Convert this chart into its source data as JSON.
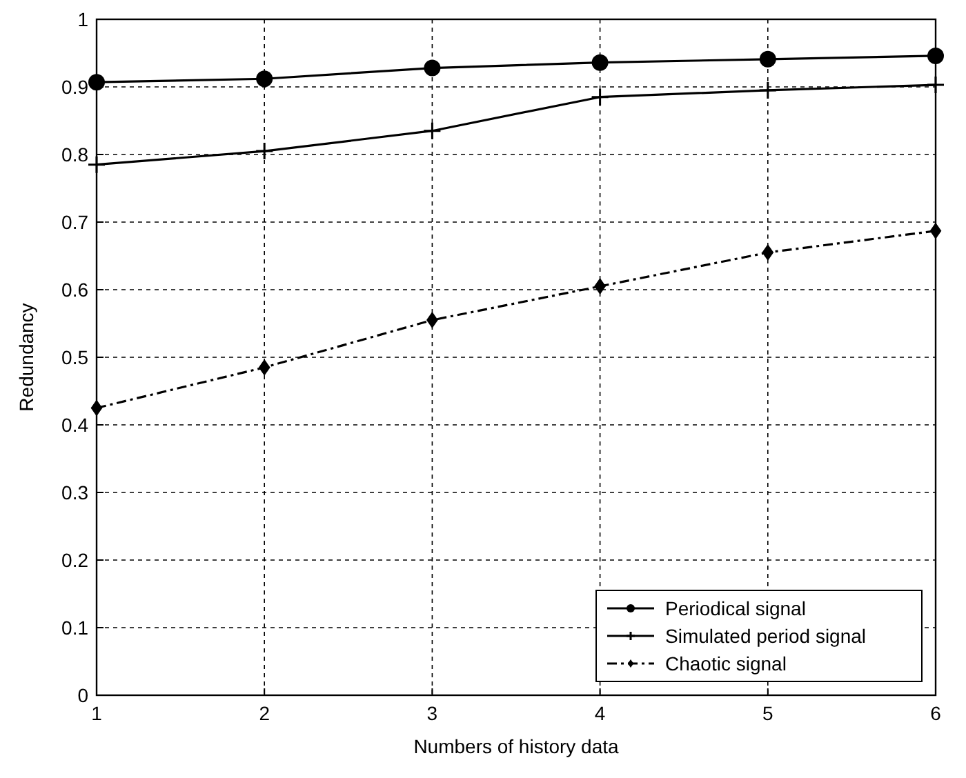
{
  "chart_data": {
    "type": "line",
    "xlabel": "Numbers of history data",
    "ylabel": "Redundancy",
    "x": [
      1,
      2,
      3,
      4,
      5,
      6
    ],
    "xlim": [
      1,
      6
    ],
    "xticks": [
      1,
      2,
      3,
      4,
      5,
      6
    ],
    "ylim": [
      0,
      1
    ],
    "yticks": [
      0,
      0.1,
      0.2,
      0.3,
      0.4,
      0.5,
      0.6,
      0.7,
      0.8,
      0.9,
      1
    ],
    "grid": true,
    "legend": "bottom right",
    "series": [
      {
        "name": "Periodical signal",
        "color": "#000000",
        "marker": "circle",
        "line_style": "solid",
        "values": [
          0.907,
          0.912,
          0.928,
          0.936,
          0.941,
          0.946
        ]
      },
      {
        "name": "Simulated period signal",
        "color": "#000000",
        "marker": "cross",
        "line_style": "solid",
        "values": [
          0.785,
          0.805,
          0.835,
          0.885,
          0.895,
          0.903
        ]
      },
      {
        "name": "Chaotic signal",
        "color": "#000000",
        "marker": "diamond",
        "line_style": "dashed",
        "values": [
          0.425,
          0.485,
          0.555,
          0.605,
          0.655,
          0.687
        ]
      }
    ]
  }
}
